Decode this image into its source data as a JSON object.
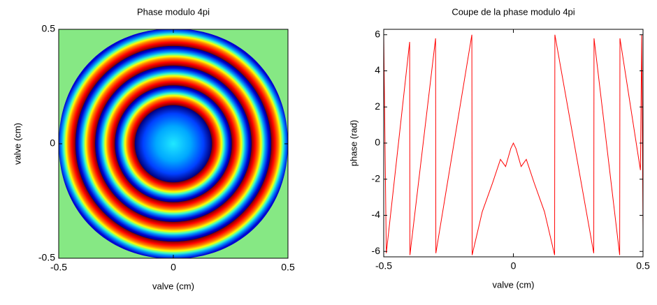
{
  "chart_data": [
    {
      "type": "image",
      "title": "Phase modulo 4pi",
      "x_label": "valve (cm)",
      "y_label": "valve (cm)",
      "xlim": [
        -0.5,
        0.5
      ],
      "ylim": [
        -0.5,
        0.5
      ],
      "xticks": [
        -0.5,
        0,
        0.5
      ],
      "yticks": [
        -0.5,
        0,
        0.5
      ]
    },
    {
      "type": "line",
      "title": "Coupe de la phase modulo 4pi",
      "x_label": "valve (cm)",
      "y_label": "phase (rad)",
      "xlim": [
        -0.5,
        0.5
      ],
      "ylim": [
        -6.3,
        6.3
      ],
      "xticks": [
        -0.5,
        0,
        0.5
      ],
      "yticks": [
        -6,
        -4,
        -2,
        0,
        2,
        4,
        6
      ],
      "series": [
        {
          "color": "#ff0000",
          "x": [
            -0.5,
            -0.49,
            -0.4,
            -0.399,
            -0.3,
            -0.299,
            -0.16,
            -0.159,
            -0.12,
            -0.08,
            -0.05,
            -0.03,
            -0.01,
            0,
            0.01,
            0.03,
            0.05,
            0.08,
            0.12,
            0.159,
            0.16,
            0.31,
            0.311,
            0.41,
            0.411,
            0.49,
            0.495,
            0.5
          ],
          "values": [
            6,
            -6.1,
            5.6,
            -6.2,
            5.8,
            -6.1,
            6,
            -6.2,
            -3.8,
            -2.2,
            -0.9,
            -1.3,
            -0.3,
            0,
            -0.3,
            -1.3,
            -0.9,
            -2.2,
            -3.8,
            -6.2,
            6,
            -6.1,
            5.8,
            -6.2,
            5.8,
            -1.5,
            6,
            -4.8
          ]
        }
      ]
    }
  ]
}
